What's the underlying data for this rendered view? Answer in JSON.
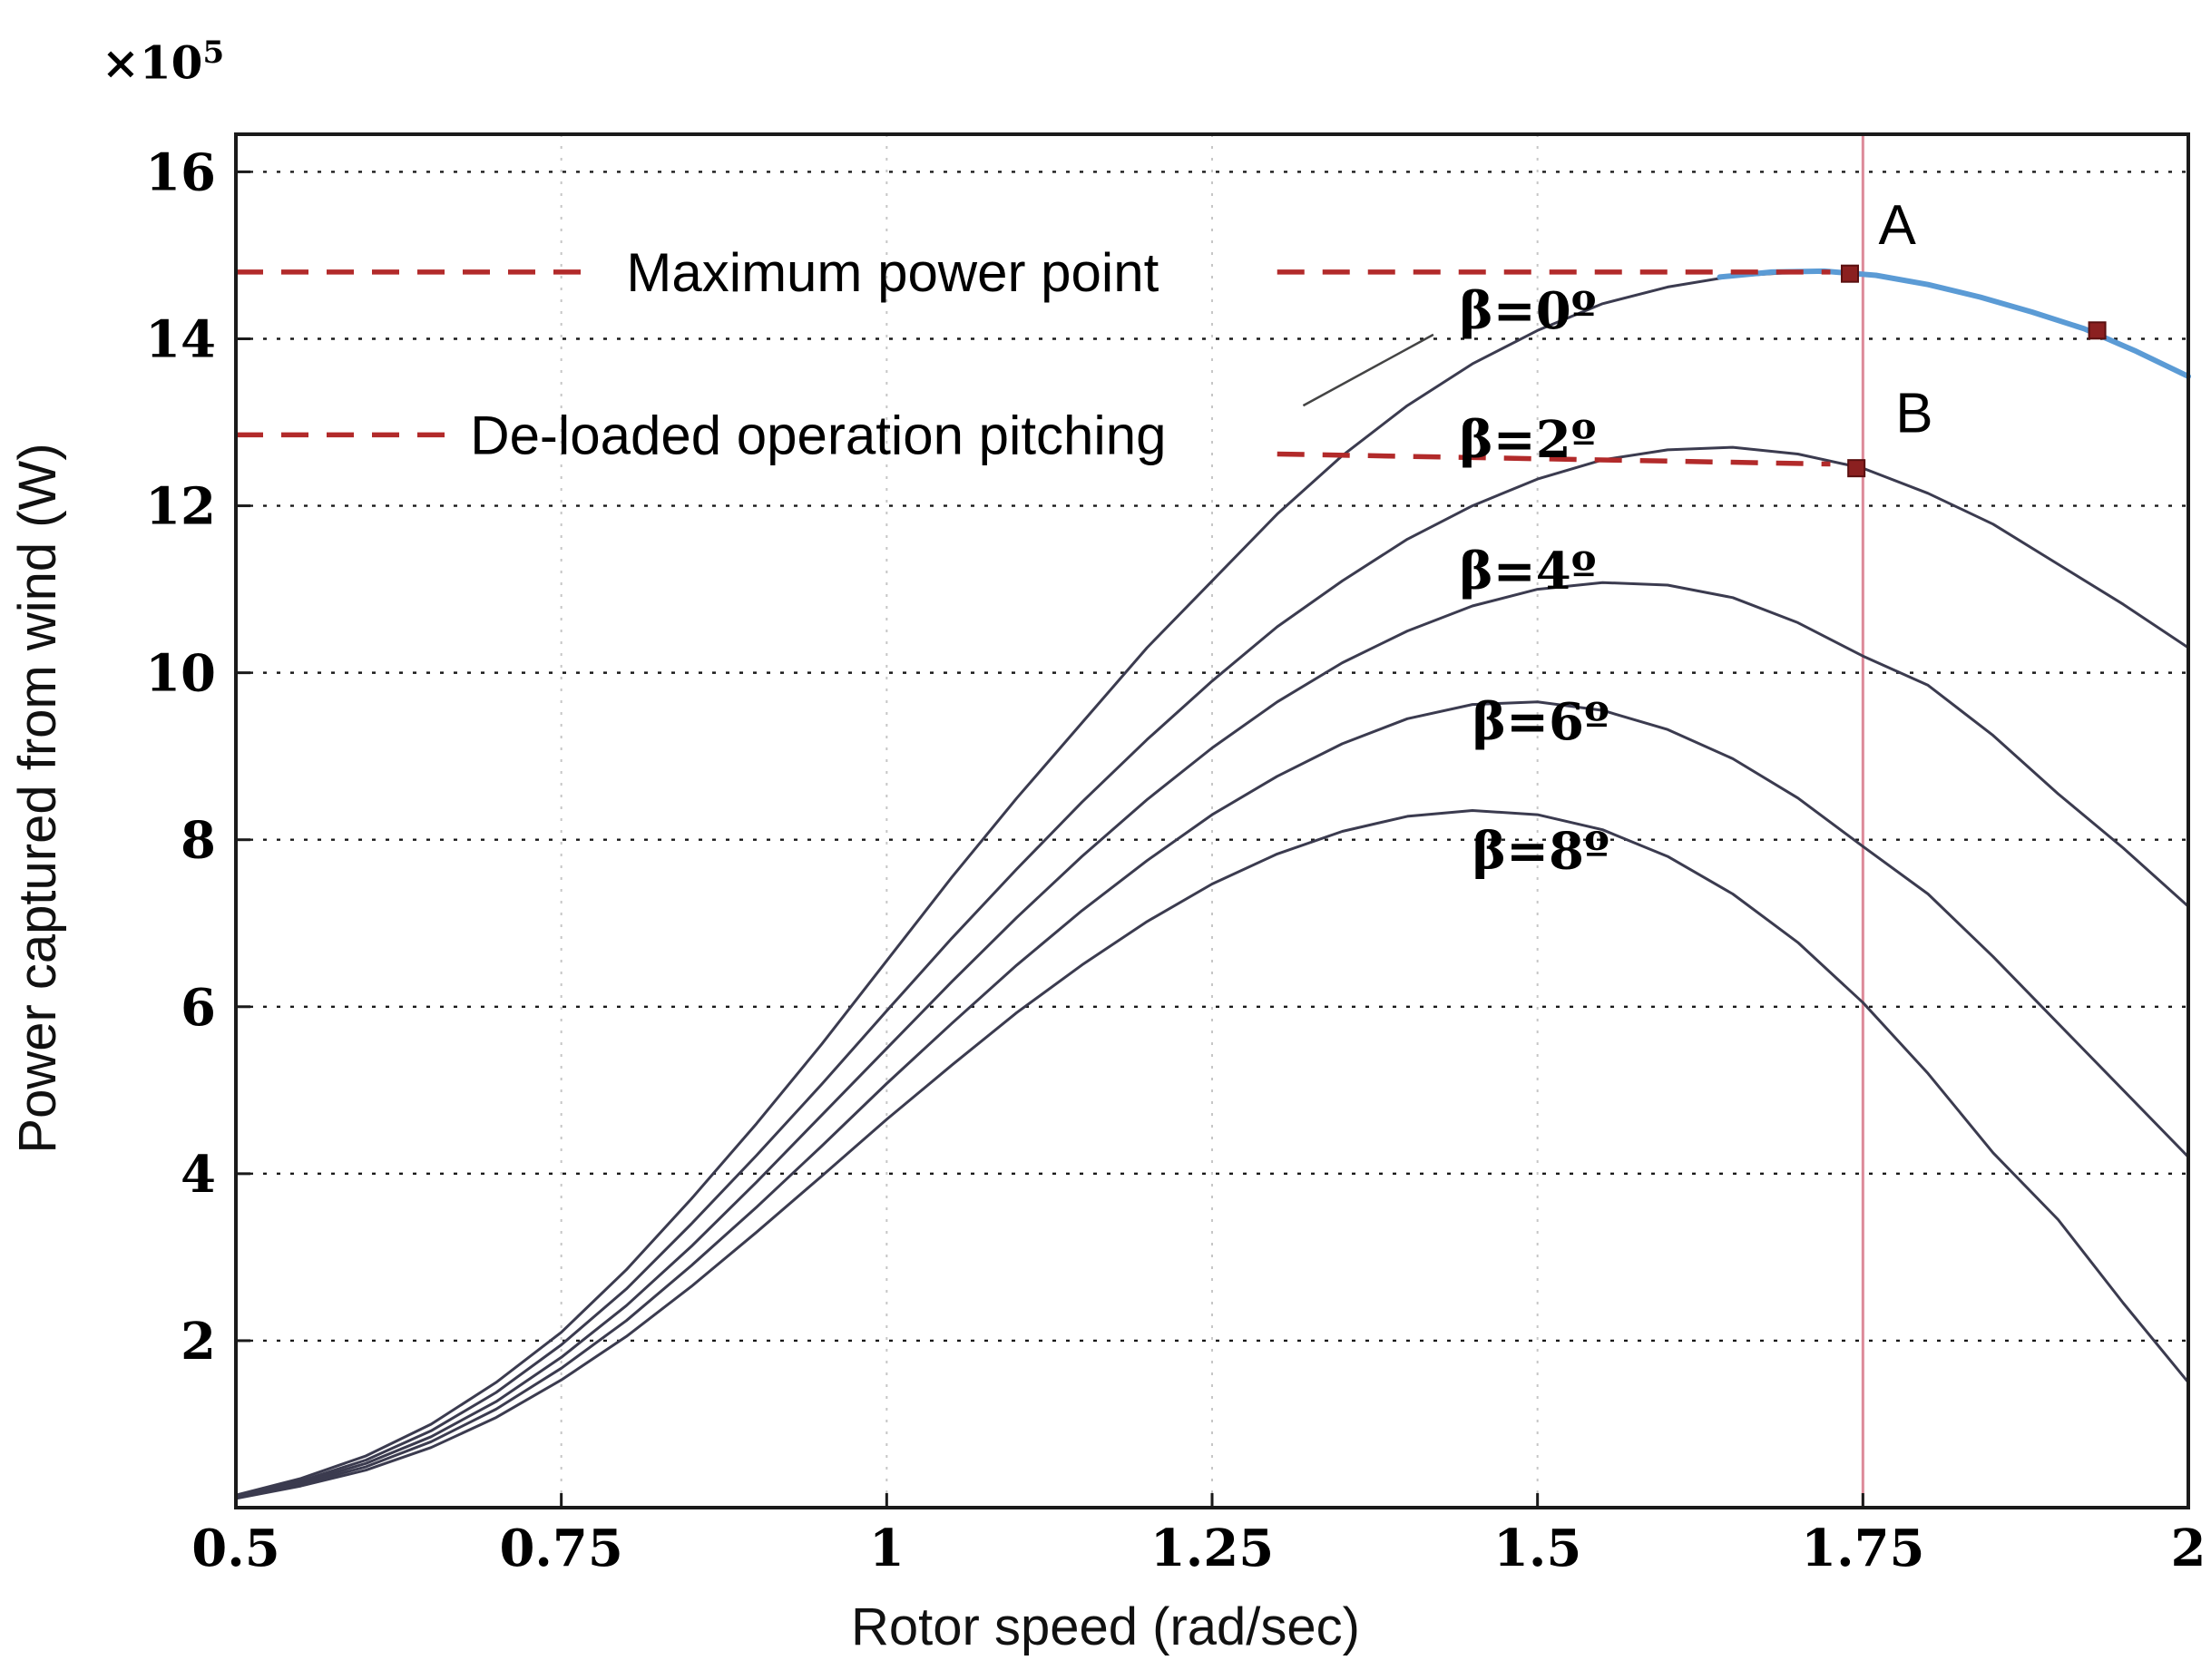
{
  "figure": {
    "multiplier_mantissa": "×10",
    "multiplier_exponent": "5",
    "xlabel": "Rotor speed (rad/sec)",
    "ylabel": "Power captured from wind (W)"
  },
  "chart_data": {
    "type": "line",
    "title": "",
    "xlabel": "Rotor speed (rad/sec)",
    "ylabel": "Power captured from wind (W)",
    "y_unit_multiplier": "×10^5",
    "xlim": [
      0.5,
      2.0
    ],
    "ylim": [
      0,
      16.45
    ],
    "xticks": [
      0.5,
      0.75,
      1,
      1.25,
      1.5,
      1.75,
      2
    ],
    "xtick_labels": [
      "0.5",
      "0.75",
      "1",
      "1.25",
      "1.5",
      "1.75",
      "2"
    ],
    "yticks": [
      2,
      4,
      6,
      8,
      10,
      12,
      14,
      16
    ],
    "ytick_labels": [
      "2",
      "4",
      "6",
      "8",
      "10",
      "12",
      "14",
      "16"
    ],
    "grid": {
      "horizontal": "black dotted",
      "vertical": "light gray dotted"
    },
    "colors": {
      "curve": "#3b3b4f",
      "mppt_locus": "#5b9bd5",
      "dashed_annotation": "#b22a2a",
      "vertical_line": "#dd8a99",
      "marker": "#8b2020",
      "axis": "#1a1a1a"
    },
    "series": [
      {
        "name": "beta-8",
        "label": "β=8º",
        "label_pos": [
          1.45,
          7.85
        ],
        "x": [
          0.5,
          0.55,
          0.6,
          0.65,
          0.7,
          0.75,
          0.8,
          0.85,
          0.9,
          0.95,
          1.0,
          1.05,
          1.1,
          1.15,
          1.2,
          1.25,
          1.3,
          1.35,
          1.4,
          1.45,
          1.5,
          1.55,
          1.6,
          1.65,
          1.7,
          1.75,
          1.8,
          1.85,
          1.9,
          1.95,
          2.0
        ],
        "y": [
          0.11,
          0.26,
          0.45,
          0.72,
          1.08,
          1.53,
          2.05,
          2.65,
          3.3,
          3.97,
          4.65,
          5.3,
          5.93,
          6.5,
          7.02,
          7.47,
          7.83,
          8.1,
          8.28,
          8.35,
          8.3,
          8.12,
          7.8,
          7.35,
          6.77,
          6.05,
          5.2,
          4.25,
          3.45,
          2.45,
          1.5
        ]
      },
      {
        "name": "beta-6",
        "label": "β=6º",
        "label_pos": [
          1.45,
          9.4
        ],
        "x": [
          0.5,
          0.55,
          0.6,
          0.65,
          0.7,
          0.75,
          0.8,
          0.85,
          0.9,
          0.95,
          1.0,
          1.05,
          1.1,
          1.15,
          1.2,
          1.25,
          1.3,
          1.35,
          1.4,
          1.45,
          1.5,
          1.55,
          1.6,
          1.65,
          1.7,
          1.75,
          1.8,
          1.85,
          1.9,
          1.95,
          2.0
        ],
        "y": [
          0.12,
          0.28,
          0.49,
          0.79,
          1.18,
          1.67,
          2.24,
          2.9,
          3.6,
          4.33,
          5.08,
          5.8,
          6.5,
          7.15,
          7.75,
          8.3,
          8.76,
          9.15,
          9.45,
          9.62,
          9.65,
          9.55,
          9.32,
          8.97,
          8.5,
          7.92,
          7.35,
          6.6,
          5.8,
          5.0,
          4.2
        ]
      },
      {
        "name": "beta-4",
        "label": "β=4º",
        "label_pos": [
          1.44,
          11.2
        ],
        "x": [
          0.5,
          0.55,
          0.6,
          0.65,
          0.7,
          0.75,
          0.8,
          0.85,
          0.9,
          0.95,
          1.0,
          1.05,
          1.1,
          1.15,
          1.2,
          1.25,
          1.3,
          1.35,
          1.4,
          1.45,
          1.5,
          1.55,
          1.6,
          1.65,
          1.7,
          1.75,
          1.8,
          1.85,
          1.9,
          1.95,
          2.0
        ],
        "y": [
          0.13,
          0.3,
          0.53,
          0.85,
          1.27,
          1.8,
          2.42,
          3.13,
          3.9,
          4.7,
          5.5,
          6.3,
          7.07,
          7.8,
          8.48,
          9.1,
          9.65,
          10.12,
          10.5,
          10.8,
          11.0,
          11.08,
          11.05,
          10.9,
          10.6,
          10.2,
          9.85,
          9.25,
          8.55,
          7.9,
          7.2
        ]
      },
      {
        "name": "beta-2",
        "label": "β=2º",
        "label_pos": [
          1.44,
          12.78
        ],
        "x": [
          0.5,
          0.55,
          0.6,
          0.65,
          0.7,
          0.75,
          0.8,
          0.85,
          0.9,
          0.95,
          1.0,
          1.05,
          1.1,
          1.15,
          1.2,
          1.25,
          1.3,
          1.35,
          1.4,
          1.45,
          1.5,
          1.55,
          1.6,
          1.65,
          1.7,
          1.75,
          1.8,
          1.85,
          1.9,
          1.95,
          2.0
        ],
        "y": [
          0.14,
          0.32,
          0.57,
          0.92,
          1.38,
          1.95,
          2.62,
          3.4,
          4.22,
          5.07,
          5.95,
          6.82,
          7.65,
          8.45,
          9.2,
          9.9,
          10.55,
          11.1,
          11.6,
          12.0,
          12.32,
          12.55,
          12.67,
          12.7,
          12.62,
          12.45,
          12.15,
          11.78,
          11.3,
          10.82,
          10.3
        ]
      },
      {
        "name": "beta-0",
        "label": "β=0º",
        "label_pos": [
          1.44,
          14.32
        ],
        "leader": [
          [
            1.32,
            13.2
          ],
          [
            1.42,
            14.05
          ]
        ],
        "x": [
          0.5,
          0.55,
          0.6,
          0.65,
          0.7,
          0.75,
          0.8,
          0.85,
          0.9,
          0.95,
          1.0,
          1.05,
          1.1,
          1.15,
          1.2,
          1.25,
          1.3,
          1.35,
          1.4,
          1.45,
          1.5,
          1.55,
          1.6,
          1.65,
          1.7,
          1.75
        ],
        "y": [
          0.15,
          0.35,
          0.62,
          1.0,
          1.5,
          2.1,
          2.85,
          3.7,
          4.6,
          5.55,
          6.55,
          7.55,
          8.5,
          9.4,
          10.3,
          11.1,
          11.9,
          12.6,
          13.2,
          13.7,
          14.1,
          14.42,
          14.62,
          14.75,
          14.8,
          14.78
        ]
      },
      {
        "name": "mppt-locus",
        "label": "",
        "is_locus": true,
        "x": [
          1.64,
          1.68,
          1.72,
          1.76,
          1.8,
          1.84,
          1.88,
          1.92,
          1.96,
          2.0
        ],
        "y": [
          14.74,
          14.8,
          14.81,
          14.76,
          14.65,
          14.5,
          14.32,
          14.12,
          13.85,
          13.55
        ]
      }
    ],
    "annotations": {
      "max_power": {
        "text": "Maximum power point",
        "y": 14.8,
        "seg1": [
          0.5,
          0.775
        ],
        "text_x": 0.8,
        "seg2": [
          1.3,
          1.725
        ]
      },
      "deloaded": {
        "text": "De-loaded operation pitching",
        "y": 12.85,
        "seg1": [
          0.5,
          0.665
        ],
        "text_x": 0.68,
        "seg2_from": [
          1.3,
          12.62
        ],
        "seg2_to": [
          1.725,
          12.5
        ]
      },
      "vline_x": 1.75,
      "points": [
        {
          "name": "point-A",
          "x": 1.74,
          "y": 14.78,
          "letter": "A",
          "letter_pos": [
            1.762,
            15.35
          ]
        },
        {
          "name": "point-B",
          "x": 1.745,
          "y": 12.45,
          "letter": "B",
          "letter_pos": [
            1.775,
            13.1
          ]
        },
        {
          "name": "point-locus",
          "x": 1.93,
          "y": 14.1,
          "letter": "",
          "letter_pos": null
        }
      ]
    }
  }
}
